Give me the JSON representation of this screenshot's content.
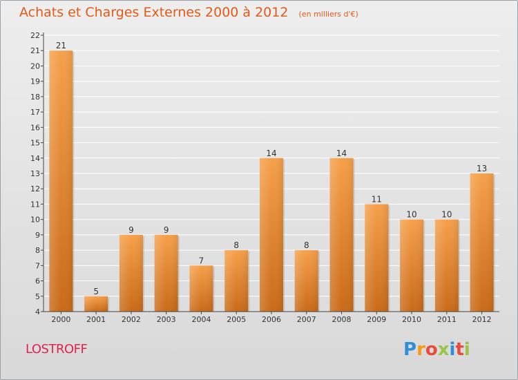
{
  "title": "Achats et Charges Externes 2000 à 2012",
  "subtitle": "(en milliers d'€)",
  "commune": "LOSTROFF",
  "brand": {
    "letters": [
      "P",
      "r",
      "o",
      "x",
      "i",
      "t",
      "i"
    ],
    "colors": [
      "#2f8fd6",
      "#f39c12",
      "#e74c3c",
      "#9bc34a",
      "#2f8fd6",
      "#e74c3c",
      "#9bc34a"
    ]
  },
  "colors": {
    "bar_top": "#f6a04a",
    "bar_bottom": "#c96a18",
    "axis": "#444444",
    "grid": "#ffffff"
  },
  "chart_data": {
    "type": "bar",
    "categories": [
      "2000",
      "2001",
      "2002",
      "2003",
      "2004",
      "2005",
      "2006",
      "2007",
      "2008",
      "2009",
      "2010",
      "2011",
      "2012"
    ],
    "values": [
      21,
      5,
      9,
      9,
      7,
      8,
      14,
      8,
      14,
      11,
      10,
      10,
      13
    ],
    "data_labels": [
      "21",
      "5",
      "9",
      "9",
      "7",
      "8",
      "14",
      "8",
      "14",
      "11",
      "10",
      "10",
      "13"
    ],
    "y_ticks": [
      "4",
      "5",
      "6",
      "7",
      "8",
      "9",
      "10",
      "11",
      "12",
      "13",
      "14",
      "15",
      "16",
      "17",
      "18",
      "19",
      "20",
      "21",
      "22"
    ],
    "ylim": [
      4,
      22
    ],
    "grid": true,
    "legend": "none"
  }
}
